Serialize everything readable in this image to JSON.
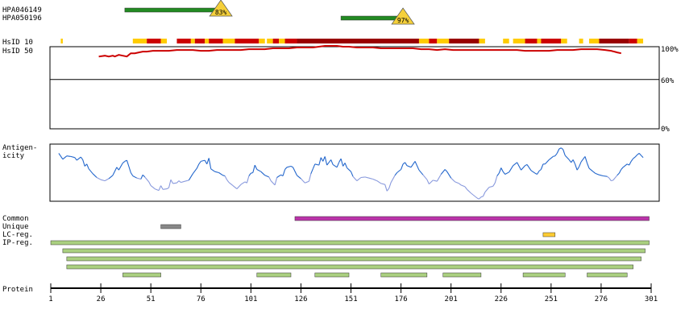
{
  "chart_data": {
    "type": "protein_feature_plot",
    "protein_length": 301,
    "x_ticks": [
      1,
      26,
      51,
      76,
      101,
      126,
      151,
      176,
      201,
      226,
      251,
      276,
      301
    ],
    "antibodies": [
      {
        "name": "HPA046149",
        "start": 38,
        "end": 86,
        "identity_label": "83%",
        "identity": 83,
        "color": "#228b22"
      },
      {
        "name": "HPA050196",
        "start": 146,
        "end": 177,
        "identity_label": "97%",
        "identity": 97,
        "color": "#228b22"
      }
    ],
    "hsid": {
      "labels": [
        "HsID 10",
        "HsID 50"
      ],
      "y_axis_labels": [
        "100%",
        "60%",
        "0%"
      ],
      "line_color": "#cc0000",
      "track_colors": {
        "low": "#ffcc00",
        "medium": "#dd7700",
        "high": "#cc0000",
        "highest": "#990000"
      },
      "track_segments": [
        {
          "start": 6,
          "end": 7,
          "level": "low"
        },
        {
          "start": 42,
          "end": 49,
          "level": "low"
        },
        {
          "start": 49,
          "end": 56,
          "level": "high"
        },
        {
          "start": 56,
          "end": 59,
          "level": "low"
        },
        {
          "start": 64,
          "end": 71,
          "level": "high"
        },
        {
          "start": 71,
          "end": 73,
          "level": "low"
        },
        {
          "start": 73,
          "end": 78,
          "level": "high"
        },
        {
          "start": 78,
          "end": 80,
          "level": "low"
        },
        {
          "start": 80,
          "end": 87,
          "level": "high"
        },
        {
          "start": 87,
          "end": 93,
          "level": "low"
        },
        {
          "start": 93,
          "end": 105,
          "level": "high"
        },
        {
          "start": 105,
          "end": 108,
          "level": "low"
        },
        {
          "start": 109,
          "end": 112,
          "level": "low"
        },
        {
          "start": 112,
          "end": 115,
          "level": "high"
        },
        {
          "start": 115,
          "end": 118,
          "level": "low"
        },
        {
          "start": 118,
          "end": 124,
          "level": "high"
        },
        {
          "start": 124,
          "end": 185,
          "level": "highest"
        },
        {
          "start": 185,
          "end": 190,
          "level": "low"
        },
        {
          "start": 190,
          "end": 194,
          "level": "high"
        },
        {
          "start": 194,
          "end": 200,
          "level": "low"
        },
        {
          "start": 200,
          "end": 215,
          "level": "highest"
        },
        {
          "start": 215,
          "end": 218,
          "level": "low"
        },
        {
          "start": 227,
          "end": 230,
          "level": "low"
        },
        {
          "start": 232,
          "end": 238,
          "level": "low"
        },
        {
          "start": 238,
          "end": 244,
          "level": "high"
        },
        {
          "start": 244,
          "end": 246,
          "level": "low"
        },
        {
          "start": 246,
          "end": 256,
          "level": "high"
        },
        {
          "start": 256,
          "end": 259,
          "level": "low"
        },
        {
          "start": 265,
          "end": 267,
          "level": "low"
        },
        {
          "start": 270,
          "end": 275,
          "level": "low"
        },
        {
          "start": 275,
          "end": 290,
          "level": "highest"
        },
        {
          "start": 290,
          "end": 294,
          "level": "high"
        },
        {
          "start": 294,
          "end": 297,
          "level": "low"
        }
      ],
      "line_points": [
        [
          25,
          88
        ],
        [
          28,
          89
        ],
        [
          30,
          88
        ],
        [
          32,
          89
        ],
        [
          33,
          88
        ],
        [
          35,
          90
        ],
        [
          37,
          89
        ],
        [
          39,
          88
        ],
        [
          41,
          92
        ],
        [
          43,
          92
        ],
        [
          45,
          93
        ],
        [
          47,
          94
        ],
        [
          49,
          94
        ],
        [
          52,
          95
        ],
        [
          56,
          95
        ],
        [
          60,
          95
        ],
        [
          64,
          96
        ],
        [
          68,
          96
        ],
        [
          72,
          96
        ],
        [
          76,
          95
        ],
        [
          80,
          95
        ],
        [
          84,
          96
        ],
        [
          88,
          96
        ],
        [
          92,
          96
        ],
        [
          96,
          96
        ],
        [
          100,
          97
        ],
        [
          104,
          97
        ],
        [
          108,
          97
        ],
        [
          112,
          98
        ],
        [
          116,
          98
        ],
        [
          120,
          98
        ],
        [
          124,
          99
        ],
        [
          128,
          99
        ],
        [
          132,
          99
        ],
        [
          135,
          100
        ],
        [
          138,
          101
        ],
        [
          141,
          101
        ],
        [
          144,
          101
        ],
        [
          147,
          100
        ],
        [
          150,
          100
        ],
        [
          154,
          99
        ],
        [
          158,
          99
        ],
        [
          162,
          99
        ],
        [
          166,
          98
        ],
        [
          170,
          98
        ],
        [
          174,
          98
        ],
        [
          178,
          98
        ],
        [
          182,
          98
        ],
        [
          186,
          97
        ],
        [
          190,
          97
        ],
        [
          194,
          96
        ],
        [
          198,
          97
        ],
        [
          202,
          96
        ],
        [
          206,
          96
        ],
        [
          210,
          96
        ],
        [
          214,
          96
        ],
        [
          218,
          96
        ],
        [
          222,
          96
        ],
        [
          226,
          96
        ],
        [
          230,
          96
        ],
        [
          234,
          96
        ],
        [
          238,
          95
        ],
        [
          242,
          95
        ],
        [
          246,
          95
        ],
        [
          250,
          95
        ],
        [
          254,
          96
        ],
        [
          258,
          96
        ],
        [
          262,
          96
        ],
        [
          266,
          97
        ],
        [
          270,
          97
        ],
        [
          274,
          97
        ],
        [
          278,
          96
        ],
        [
          281,
          95
        ],
        [
          284,
          93
        ],
        [
          286,
          92
        ]
      ]
    },
    "antigenicity": {
      "label": "Antigen-\nicity",
      "high_color": "#2266cc",
      "low_color": "#8899dd",
      "points": [
        [
          5,
          0.86
        ],
        [
          7,
          0.75
        ],
        [
          9,
          0.81
        ],
        [
          11,
          0.8
        ],
        [
          13,
          0.78
        ],
        [
          14,
          0.73
        ],
        [
          16,
          0.79
        ],
        [
          17,
          0.74
        ],
        [
          18,
          0.62
        ],
        [
          19,
          0.66
        ],
        [
          20,
          0.57
        ],
        [
          22,
          0.48
        ],
        [
          24,
          0.41
        ],
        [
          26,
          0.37
        ],
        [
          28,
          0.35
        ],
        [
          30,
          0.39
        ],
        [
          32,
          0.45
        ],
        [
          34,
          0.6
        ],
        [
          35,
          0.55
        ],
        [
          37,
          0.68
        ],
        [
          38,
          0.71
        ],
        [
          39,
          0.73
        ],
        [
          40,
          0.62
        ],
        [
          41,
          0.5
        ],
        [
          42,
          0.44
        ],
        [
          44,
          0.4
        ],
        [
          46,
          0.38
        ],
        [
          47,
          0.46
        ],
        [
          48,
          0.42
        ],
        [
          50,
          0.33
        ],
        [
          51,
          0.26
        ],
        [
          53,
          0.2
        ],
        [
          55,
          0.17
        ],
        [
          56,
          0.26
        ],
        [
          57,
          0.19
        ],
        [
          59,
          0.2
        ],
        [
          60,
          0.22
        ],
        [
          61,
          0.37
        ],
        [
          62,
          0.3
        ],
        [
          64,
          0.31
        ],
        [
          65,
          0.35
        ],
        [
          66,
          0.32
        ],
        [
          68,
          0.34
        ],
        [
          70,
          0.36
        ],
        [
          72,
          0.48
        ],
        [
          74,
          0.58
        ],
        [
          75,
          0.66
        ],
        [
          76,
          0.71
        ],
        [
          78,
          0.73
        ],
        [
          79,
          0.66
        ],
        [
          80,
          0.77
        ],
        [
          81,
          0.57
        ],
        [
          83,
          0.52
        ],
        [
          85,
          0.5
        ],
        [
          87,
          0.45
        ],
        [
          88,
          0.44
        ],
        [
          89,
          0.37
        ],
        [
          90,
          0.32
        ],
        [
          92,
          0.26
        ],
        [
          94,
          0.2
        ],
        [
          96,
          0.28
        ],
        [
          98,
          0.33
        ],
        [
          99,
          0.31
        ],
        [
          100,
          0.44
        ],
        [
          101,
          0.49
        ],
        [
          102,
          0.5
        ],
        [
          103,
          0.64
        ],
        [
          104,
          0.56
        ],
        [
          106,
          0.52
        ],
        [
          108,
          0.45
        ],
        [
          110,
          0.42
        ],
        [
          111,
          0.35
        ],
        [
          113,
          0.27
        ],
        [
          114,
          0.41
        ],
        [
          116,
          0.46
        ],
        [
          117,
          0.44
        ],
        [
          118,
          0.56
        ],
        [
          119,
          0.6
        ],
        [
          121,
          0.62
        ],
        [
          122,
          0.6
        ],
        [
          124,
          0.45
        ],
        [
          126,
          0.39
        ],
        [
          127,
          0.35
        ],
        [
          128,
          0.31
        ],
        [
          130,
          0.34
        ],
        [
          131,
          0.48
        ],
        [
          132,
          0.57
        ],
        [
          133,
          0.66
        ],
        [
          135,
          0.64
        ],
        [
          136,
          0.78
        ],
        [
          137,
          0.71
        ],
        [
          138,
          0.8
        ],
        [
          139,
          0.64
        ],
        [
          141,
          0.74
        ],
        [
          142,
          0.65
        ],
        [
          144,
          0.6
        ],
        [
          145,
          0.69
        ],
        [
          146,
          0.76
        ],
        [
          147,
          0.62
        ],
        [
          148,
          0.68
        ],
        [
          149,
          0.59
        ],
        [
          151,
          0.52
        ],
        [
          152,
          0.43
        ],
        [
          154,
          0.35
        ],
        [
          156,
          0.41
        ],
        [
          158,
          0.42
        ],
        [
          160,
          0.4
        ],
        [
          162,
          0.38
        ],
        [
          164,
          0.35
        ],
        [
          166,
          0.3
        ],
        [
          168,
          0.28
        ],
        [
          169,
          0.16
        ],
        [
          170,
          0.21
        ],
        [
          171,
          0.32
        ],
        [
          173,
          0.45
        ],
        [
          174,
          0.5
        ],
        [
          176,
          0.56
        ],
        [
          177,
          0.66
        ],
        [
          178,
          0.69
        ],
        [
          179,
          0.63
        ],
        [
          181,
          0.6
        ],
        [
          183,
          0.71
        ],
        [
          185,
          0.55
        ],
        [
          187,
          0.46
        ],
        [
          189,
          0.37
        ],
        [
          190,
          0.29
        ],
        [
          192,
          0.36
        ],
        [
          194,
          0.34
        ],
        [
          196,
          0.47
        ],
        [
          198,
          0.56
        ],
        [
          199,
          0.52
        ],
        [
          201,
          0.4
        ],
        [
          203,
          0.33
        ],
        [
          205,
          0.3
        ],
        [
          206,
          0.27
        ],
        [
          208,
          0.24
        ],
        [
          209,
          0.19
        ],
        [
          211,
          0.12
        ],
        [
          212,
          0.09
        ],
        [
          213,
          0.06
        ],
        [
          214,
          0.03
        ],
        [
          215,
          0.01
        ],
        [
          216,
          0.05
        ],
        [
          217,
          0.06
        ],
        [
          218,
          0.14
        ],
        [
          220,
          0.23
        ],
        [
          222,
          0.25
        ],
        [
          223,
          0.31
        ],
        [
          224,
          0.44
        ],
        [
          225,
          0.49
        ],
        [
          226,
          0.59
        ],
        [
          227,
          0.52
        ],
        [
          228,
          0.47
        ],
        [
          230,
          0.51
        ],
        [
          232,
          0.63
        ],
        [
          234,
          0.69
        ],
        [
          236,
          0.55
        ],
        [
          238,
          0.63
        ],
        [
          239,
          0.65
        ],
        [
          241,
          0.54
        ],
        [
          243,
          0.49
        ],
        [
          244,
          0.47
        ],
        [
          245,
          0.53
        ],
        [
          246,
          0.56
        ],
        [
          247,
          0.66
        ],
        [
          248,
          0.66
        ],
        [
          250,
          0.74
        ],
        [
          252,
          0.8
        ],
        [
          253,
          0.81
        ],
        [
          254,
          0.86
        ],
        [
          255,
          0.94
        ],
        [
          256,
          0.96
        ],
        [
          257,
          0.93
        ],
        [
          258,
          0.82
        ],
        [
          260,
          0.74
        ],
        [
          261,
          0.69
        ],
        [
          262,
          0.74
        ],
        [
          263,
          0.66
        ],
        [
          264,
          0.55
        ],
        [
          265,
          0.61
        ],
        [
          266,
          0.7
        ],
        [
          268,
          0.8
        ],
        [
          269,
          0.68
        ],
        [
          270,
          0.58
        ],
        [
          272,
          0.52
        ],
        [
          273,
          0.49
        ],
        [
          275,
          0.46
        ],
        [
          277,
          0.44
        ],
        [
          279,
          0.43
        ],
        [
          280,
          0.4
        ],
        [
          281,
          0.35
        ],
        [
          282,
          0.36
        ],
        [
          284,
          0.45
        ],
        [
          285,
          0.49
        ],
        [
          286,
          0.56
        ],
        [
          287,
          0.6
        ],
        [
          289,
          0.66
        ],
        [
          290,
          0.64
        ],
        [
          291,
          0.71
        ],
        [
          292,
          0.76
        ],
        [
          293,
          0.79
        ],
        [
          294,
          0.83
        ],
        [
          295,
          0.86
        ],
        [
          296,
          0.82
        ],
        [
          297,
          0.78
        ]
      ]
    },
    "regions": {
      "labels": [
        "Common",
        "Unique",
        "LC-reg.",
        "IP-reg."
      ],
      "common": [
        {
          "start": 123,
          "end": 300,
          "color": "#bb33aa"
        }
      ],
      "unique": [
        {
          "start": 56,
          "end": 66,
          "color": "#888888"
        }
      ],
      "lc_reg": [
        {
          "start": 247,
          "end": 253,
          "color": "#ffcc33"
        }
      ],
      "ip_reg": [
        {
          "start": 1,
          "end": 300
        },
        {
          "start": 7,
          "end": 298
        },
        {
          "start": 9,
          "end": 296
        },
        {
          "start": 9,
          "end": 292
        },
        {
          "start": 37,
          "end": 56
        },
        {
          "start": 104,
          "end": 121
        },
        {
          "start": 133,
          "end": 150
        },
        {
          "start": 166,
          "end": 189
        },
        {
          "start": 197,
          "end": 216
        },
        {
          "start": 237,
          "end": 258
        },
        {
          "start": 269,
          "end": 289
        }
      ],
      "ip_color": "#aad080"
    },
    "protein_label": "Protein"
  }
}
